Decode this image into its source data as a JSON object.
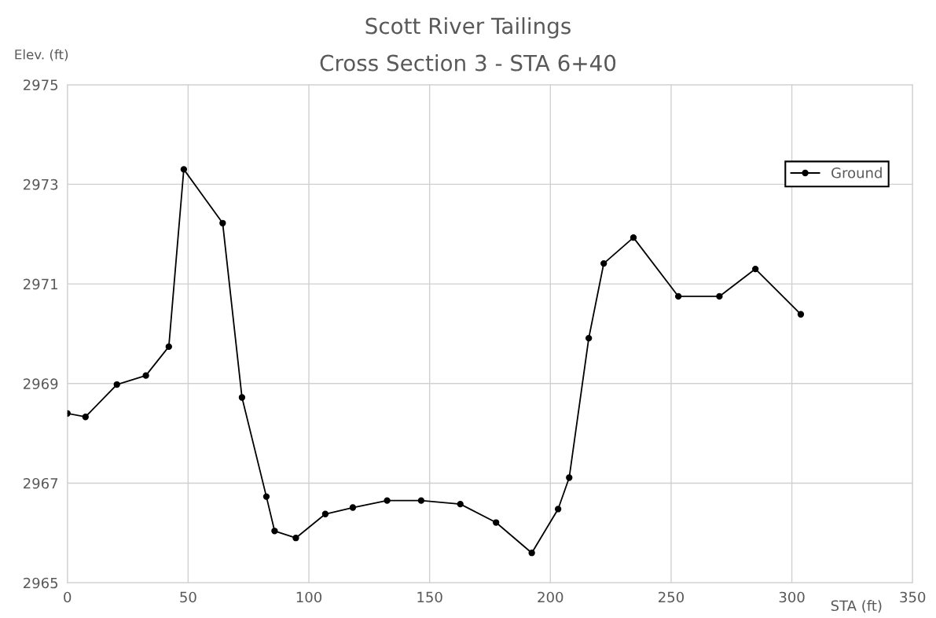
{
  "chart_data": {
    "type": "line",
    "title": "Scott River Tailings",
    "subtitle": "Cross Section 3 - STA 6+40",
    "xlabel": "STA (ft)",
    "ylabel": "Elev. (ft)",
    "x": [
      0,
      7.5,
      20.5,
      32.5,
      42,
      48.2,
      64.3,
      72.3,
      82.4,
      85.8,
      94.6,
      106.8,
      118.2,
      132.4,
      146.5,
      162.7,
      177.5,
      192.3,
      203.2,
      207.8,
      215.9,
      222.1,
      234.4,
      253,
      270,
      284.9,
      303.7
    ],
    "series": [
      {
        "name": "Ground",
        "color": "#000000",
        "values": [
          2968.4,
          2968.33,
          2968.98,
          2969.16,
          2969.74,
          2973.3,
          2972.22,
          2968.72,
          2966.73,
          2966.04,
          2965.9,
          2966.38,
          2966.51,
          2966.65,
          2966.65,
          2966.58,
          2966.21,
          2965.6,
          2966.48,
          2967.11,
          2969.91,
          2971.41,
          2971.93,
          2970.75,
          2970.75,
          2971.3,
          2970.39
        ]
      }
    ],
    "xlim": [
      0,
      350
    ],
    "xticks": [
      0,
      50,
      100,
      150,
      200,
      250,
      300,
      350
    ],
    "ylim": [
      2965,
      2975
    ],
    "yticks": [
      2965,
      2967,
      2969,
      2971,
      2973,
      2975
    ],
    "grid": true,
    "legend": "top right",
    "marker": "circle",
    "line_style": "solid"
  }
}
